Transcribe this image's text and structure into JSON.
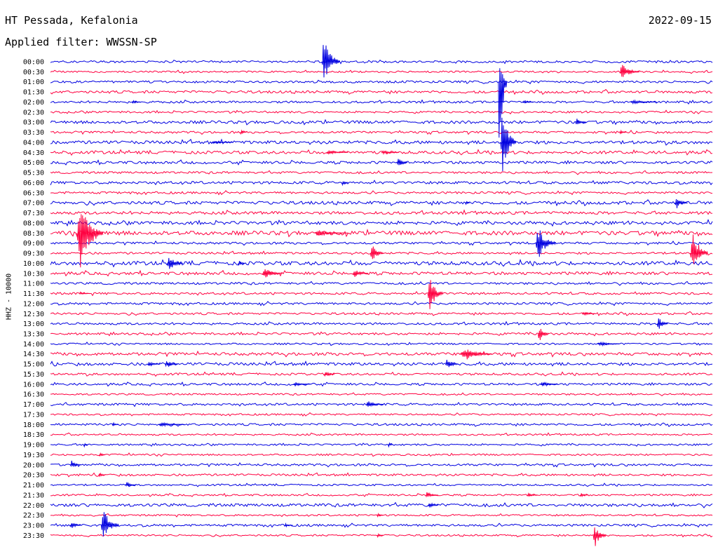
{
  "header": {
    "station": "HT Pessada, Kefalonia",
    "date": "2022-09-15",
    "filter_label": "Applied filter: WWSSN-SP"
  },
  "channel_label": "HHZ - 10000",
  "colors": {
    "blue": "#0000e0",
    "red": "#ff0040"
  },
  "chart_data": {
    "type": "line",
    "title": "HT Pessada, Kefalonia",
    "subtitle": "Applied filter: WWSSN-SP",
    "ylabel": "HHZ - 10000",
    "xlabel": "",
    "grid": false,
    "legend": "none",
    "row_minutes": 30,
    "series_colors": [
      "#0000e0",
      "#ff0040"
    ],
    "rows": [
      "00:00",
      "00:30",
      "01:00",
      "01:30",
      "02:00",
      "02:30",
      "03:00",
      "03:30",
      "04:00",
      "04:30",
      "05:00",
      "05:30",
      "06:00",
      "06:30",
      "07:00",
      "07:30",
      "08:00",
      "08:30",
      "09:00",
      "09:30",
      "10:00",
      "10:30",
      "11:00",
      "11:30",
      "12:00",
      "12:30",
      "13:00",
      "13:30",
      "14:00",
      "14:30",
      "15:00",
      "15:30",
      "16:00",
      "16:30",
      "17:00",
      "17:30",
      "18:00",
      "18:30",
      "19:00",
      "19:30",
      "20:00",
      "20:30",
      "21:00",
      "21:30",
      "22:00",
      "22:30",
      "23:00",
      "23:30"
    ],
    "noise": [
      1.5,
      1.2,
      1.5,
      1.8,
      1.5,
      1.3,
      2.0,
      1.5,
      2.2,
      2.0,
      1.8,
      1.5,
      1.8,
      1.5,
      2.2,
      2.0,
      2.2,
      2.8,
      1.5,
      1.5,
      2.5,
      2.0,
      1.5,
      1.5,
      1.5,
      1.5,
      1.5,
      1.5,
      1.2,
      2.0,
      2.0,
      1.5,
      1.5,
      1.2,
      1.5,
      1.2,
      1.5,
      1.2,
      1.2,
      1.2,
      1.5,
      1.5,
      1.2,
      1.2,
      2.0,
      1.2,
      1.5,
      1.2
    ],
    "events": [
      {
        "row": 0,
        "minute": 12.3,
        "amp_up": 38,
        "amp_down": 30,
        "dur": 0.8
      },
      {
        "row": 1,
        "minute": 25.8,
        "amp_up": 12,
        "amp_down": 12,
        "dur": 0.9
      },
      {
        "row": 2,
        "minute": 20.3,
        "amp_up": 38,
        "amp_down": 125,
        "dur": 0.4
      },
      {
        "row": 4,
        "minute": 3.7,
        "amp_up": 3,
        "amp_down": 3,
        "dur": 0.4
      },
      {
        "row": 4,
        "minute": 21.4,
        "amp_up": 3,
        "amp_down": 3,
        "dur": 0.5
      },
      {
        "row": 4,
        "minute": 26.3,
        "amp_up": 3,
        "amp_down": 3,
        "dur": 1.2
      },
      {
        "row": 6,
        "minute": 23.8,
        "amp_up": 7,
        "amp_down": 7,
        "dur": 0.5
      },
      {
        "row": 7,
        "minute": 8.6,
        "amp_up": 3,
        "amp_down": 3,
        "dur": 0.3
      },
      {
        "row": 7,
        "minute": 25.8,
        "amp_up": 3,
        "amp_down": 3,
        "dur": 0.3
      },
      {
        "row": 8,
        "minute": 7.3,
        "amp_up": 2,
        "amp_down": 2,
        "dur": 1.0
      },
      {
        "row": 8,
        "minute": 20.4,
        "amp_up": 55,
        "amp_down": 45,
        "dur": 0.7
      },
      {
        "row": 9,
        "minute": 12.5,
        "amp_up": 3,
        "amp_down": 3,
        "dur": 1.0
      },
      {
        "row": 9,
        "minute": 15.0,
        "amp_up": 3,
        "amp_down": 3,
        "dur": 0.8
      },
      {
        "row": 10,
        "minute": 15.7,
        "amp_up": 8,
        "amp_down": 8,
        "dur": 0.5
      },
      {
        "row": 12,
        "minute": 13.2,
        "amp_up": 4,
        "amp_down": 4,
        "dur": 0.3
      },
      {
        "row": 14,
        "minute": 18.8,
        "amp_up": 4,
        "amp_down": 4,
        "dur": 0.2
      },
      {
        "row": 14,
        "minute": 28.3,
        "amp_up": 9,
        "amp_down": 9,
        "dur": 0.6
      },
      {
        "row": 17,
        "minute": 1.2,
        "amp_up": 48,
        "amp_down": 58,
        "dur": 1.2
      },
      {
        "row": 17,
        "minute": 12.0,
        "amp_up": 4,
        "amp_down": 4,
        "dur": 1.5
      },
      {
        "row": 18,
        "minute": 22.0,
        "amp_up": 25,
        "amp_down": 25,
        "dur": 0.9
      },
      {
        "row": 19,
        "minute": 14.5,
        "amp_up": 15,
        "amp_down": 15,
        "dur": 0.6
      },
      {
        "row": 19,
        "minute": 29.0,
        "amp_up": 38,
        "amp_down": 25,
        "dur": 0.8
      },
      {
        "row": 20,
        "minute": 5.3,
        "amp_up": 12,
        "amp_down": 12,
        "dur": 0.7
      },
      {
        "row": 20,
        "minute": 8.5,
        "amp_up": 5,
        "amp_down": 5,
        "dur": 0.3
      },
      {
        "row": 21,
        "minute": 9.6,
        "amp_up": 8,
        "amp_down": 8,
        "dur": 0.9
      },
      {
        "row": 21,
        "minute": 13.7,
        "amp_up": 6,
        "amp_down": 6,
        "dur": 0.7
      },
      {
        "row": 23,
        "minute": 1.3,
        "amp_up": 2,
        "amp_down": 2,
        "dur": 0.5
      },
      {
        "row": 23,
        "minute": 17.1,
        "amp_up": 26,
        "amp_down": 30,
        "dur": 0.7
      },
      {
        "row": 25,
        "minute": 24.1,
        "amp_up": 3,
        "amp_down": 3,
        "dur": 0.6
      },
      {
        "row": 26,
        "minute": 27.5,
        "amp_up": 10,
        "amp_down": 10,
        "dur": 0.5
      },
      {
        "row": 27,
        "minute": 22.1,
        "amp_up": 12,
        "amp_down": 12,
        "dur": 0.5
      },
      {
        "row": 28,
        "minute": 24.8,
        "amp_up": 3,
        "amp_down": 3,
        "dur": 1.0
      },
      {
        "row": 29,
        "minute": 18.6,
        "amp_up": 10,
        "amp_down": 10,
        "dur": 1.4
      },
      {
        "row": 30,
        "minute": 4.4,
        "amp_up": 4,
        "amp_down": 4,
        "dur": 0.6
      },
      {
        "row": 30,
        "minute": 5.2,
        "amp_up": 6,
        "amp_down": 6,
        "dur": 0.6
      },
      {
        "row": 30,
        "minute": 17.9,
        "amp_up": 8,
        "amp_down": 8,
        "dur": 0.6
      },
      {
        "row": 31,
        "minute": 12.4,
        "amp_up": 5,
        "amp_down": 5,
        "dur": 0.5
      },
      {
        "row": 32,
        "minute": 11.0,
        "amp_up": 3,
        "amp_down": 3,
        "dur": 0.8
      },
      {
        "row": 32,
        "minute": 22.2,
        "amp_up": 4,
        "amp_down": 4,
        "dur": 0.8
      },
      {
        "row": 34,
        "minute": 14.3,
        "amp_up": 5,
        "amp_down": 5,
        "dur": 0.8
      },
      {
        "row": 36,
        "minute": 2.8,
        "amp_up": 3,
        "amp_down": 3,
        "dur": 0.3
      },
      {
        "row": 36,
        "minute": 4.9,
        "amp_up": 3,
        "amp_down": 3,
        "dur": 1.2
      },
      {
        "row": 38,
        "minute": 1.5,
        "amp_up": 4,
        "amp_down": 4,
        "dur": 0.2
      },
      {
        "row": 38,
        "minute": 15.3,
        "amp_up": 4,
        "amp_down": 4,
        "dur": 0.2
      },
      {
        "row": 39,
        "minute": 2.2,
        "amp_up": 4,
        "amp_down": 4,
        "dur": 0.3
      },
      {
        "row": 40,
        "minute": 0.9,
        "amp_up": 6,
        "amp_down": 5,
        "dur": 0.5
      },
      {
        "row": 41,
        "minute": 2.2,
        "amp_up": 3,
        "amp_down": 3,
        "dur": 0.3
      },
      {
        "row": 42,
        "minute": 3.4,
        "amp_up": 4,
        "amp_down": 4,
        "dur": 0.5
      },
      {
        "row": 43,
        "minute": 17.0,
        "amp_up": 5,
        "amp_down": 5,
        "dur": 0.6
      },
      {
        "row": 43,
        "minute": 21.6,
        "amp_up": 3,
        "amp_down": 3,
        "dur": 0.5
      },
      {
        "row": 43,
        "minute": 24.0,
        "amp_up": 3,
        "amp_down": 3,
        "dur": 0.4
      },
      {
        "row": 44,
        "minute": 17.1,
        "amp_up": 5,
        "amp_down": 5,
        "dur": 0.5
      },
      {
        "row": 45,
        "minute": 14.8,
        "amp_up": 3,
        "amp_down": 3,
        "dur": 0.3
      },
      {
        "row": 46,
        "minute": 0.9,
        "amp_up": 5,
        "amp_down": 5,
        "dur": 0.5
      },
      {
        "row": 46,
        "minute": 2.3,
        "amp_up": 25,
        "amp_down": 20,
        "dur": 0.8
      },
      {
        "row": 46,
        "minute": 10.6,
        "amp_up": 3,
        "amp_down": 3,
        "dur": 0.4
      },
      {
        "row": 47,
        "minute": 14.8,
        "amp_up": 3,
        "amp_down": 3,
        "dur": 0.3
      },
      {
        "row": 47,
        "minute": 24.6,
        "amp_up": 14,
        "amp_down": 18,
        "dur": 0.6
      }
    ]
  }
}
